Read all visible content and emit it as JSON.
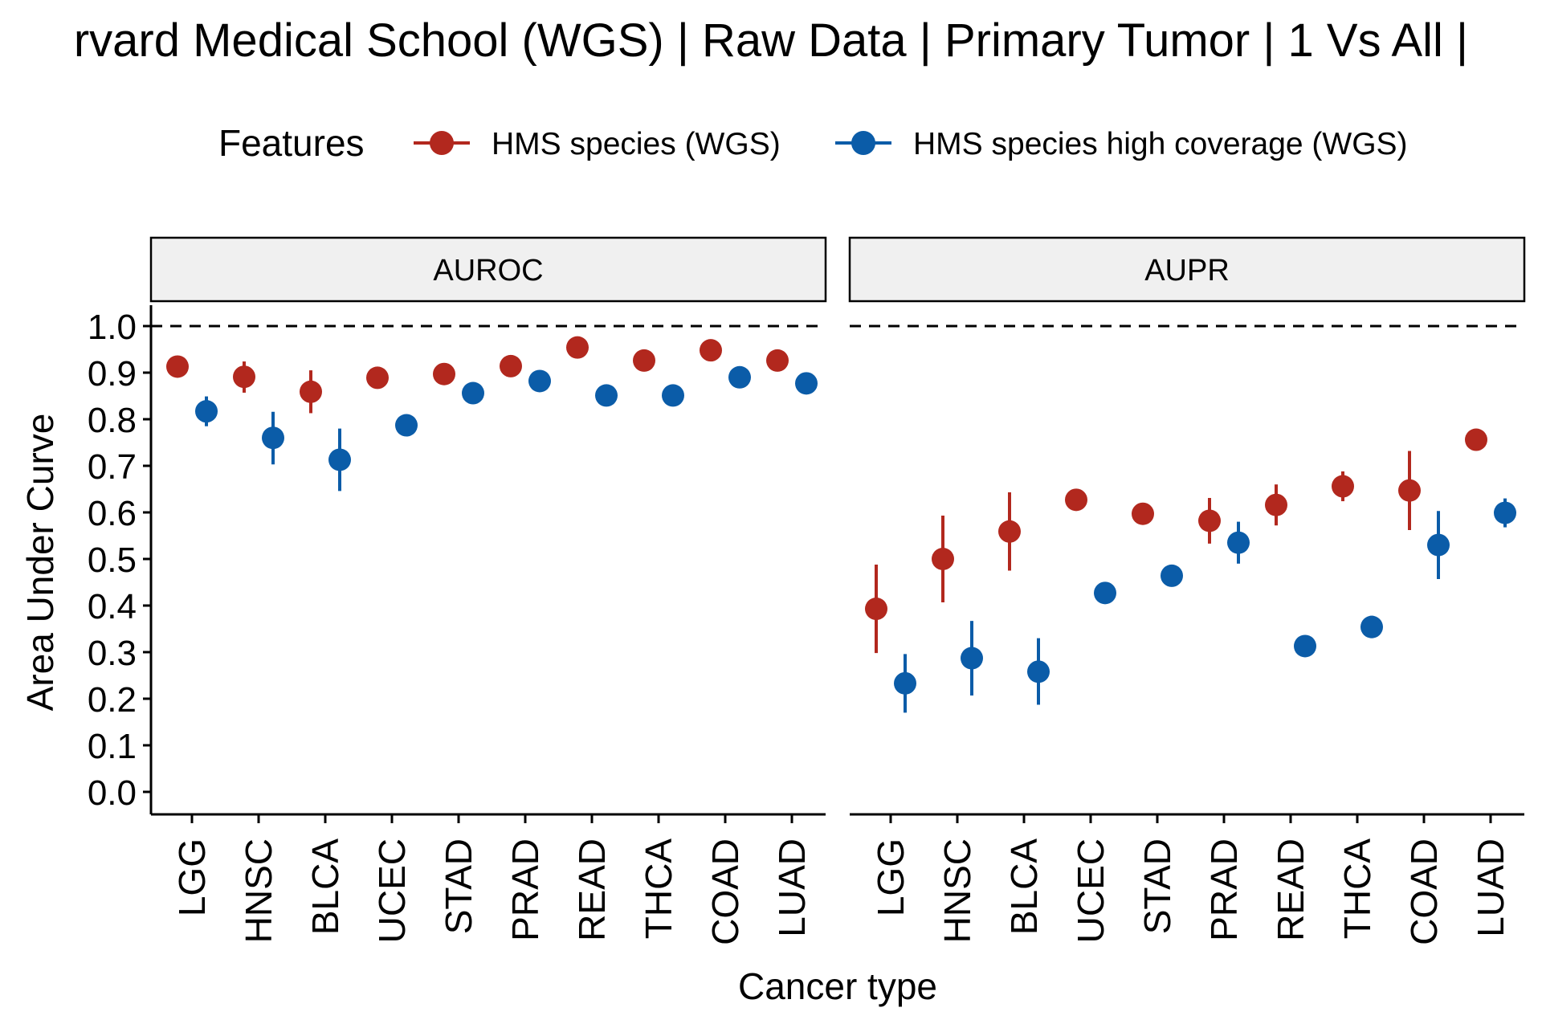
{
  "chart_data": {
    "type": "scatter",
    "title": "rvard Medical School (WGS) | Raw Data | Primary Tumor | 1 Vs All |",
    "xlabel": "Cancer type",
    "ylabel": "Area Under Curve",
    "ylim": [
      0,
      1.05
    ],
    "yticks": [
      "0.0",
      "0.1",
      "0.2",
      "0.3",
      "0.4",
      "0.5",
      "0.6",
      "0.7",
      "0.8",
      "0.9",
      "1.0"
    ],
    "reference_line": 1.0,
    "grid": false,
    "legend": {
      "title": "Features",
      "position": "top",
      "entries": [
        "HMS species (WGS)",
        "HMS species high coverage (WGS)"
      ]
    },
    "categories": [
      "LGG",
      "HNSC",
      "BLCA",
      "UCEC",
      "STAD",
      "PRAD",
      "READ",
      "THCA",
      "COAD",
      "LUAD"
    ],
    "colors": {
      "HMS species (WGS)": "#b2281e",
      "HMS species high coverage (WGS)": "#0b5ca8"
    },
    "panels": [
      {
        "name": "AUROC",
        "series": [
          {
            "name": "HMS species (WGS)",
            "values": [
              0.913,
              0.891,
              0.859,
              0.889,
              0.897,
              0.914,
              0.954,
              0.926,
              0.948,
              0.926
            ],
            "lower": [
              0.913,
              0.857,
              0.813,
              0.889,
              0.897,
              0.914,
              0.954,
              0.926,
              0.948,
              0.926
            ],
            "upper": [
              0.913,
              0.924,
              0.905,
              0.889,
              0.897,
              0.914,
              0.954,
              0.926,
              0.948,
              0.926
            ]
          },
          {
            "name": "HMS species high coverage (WGS)",
            "values": [
              0.817,
              0.76,
              0.713,
              0.787,
              0.856,
              0.882,
              0.851,
              0.851,
              0.89,
              0.877
            ],
            "lower": [
              0.785,
              0.703,
              0.646,
              0.787,
              0.856,
              0.882,
              0.851,
              0.851,
              0.878,
              0.877
            ],
            "upper": [
              0.849,
              0.816,
              0.78,
              0.787,
              0.856,
              0.882,
              0.851,
              0.851,
              0.902,
              0.877
            ]
          }
        ]
      },
      {
        "name": "AUPR",
        "series": [
          {
            "name": "HMS species (WGS)",
            "values": [
              0.393,
              0.5,
              0.559,
              0.627,
              0.597,
              0.582,
              0.616,
              0.656,
              0.647,
              0.756
            ],
            "lower": [
              0.298,
              0.407,
              0.475,
              0.627,
              0.59,
              0.533,
              0.572,
              0.624,
              0.562,
              0.756
            ],
            "upper": [
              0.488,
              0.593,
              0.643,
              0.627,
              0.604,
              0.631,
              0.66,
              0.688,
              0.732,
              0.756
            ]
          },
          {
            "name": "HMS species high coverage (WGS)",
            "values": [
              0.233,
              0.287,
              0.258,
              0.427,
              0.464,
              0.535,
              0.313,
              0.354,
              0.53,
              0.599
            ],
            "lower": [
              0.17,
              0.207,
              0.187,
              0.412,
              0.464,
              0.49,
              0.29,
              0.33,
              0.457,
              0.568
            ],
            "upper": [
              0.296,
              0.367,
              0.33,
              0.442,
              0.464,
              0.58,
              0.336,
              0.378,
              0.603,
              0.63
            ]
          }
        ]
      }
    ]
  }
}
